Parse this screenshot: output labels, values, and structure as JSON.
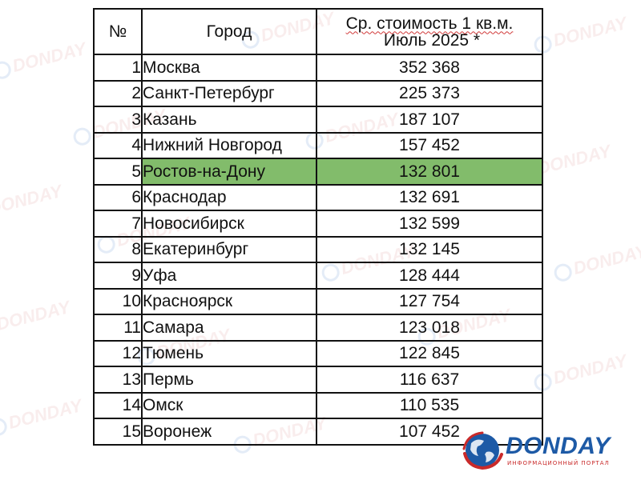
{
  "table": {
    "headers": {
      "number": "№",
      "city": "Город",
      "price_line1": "Ср. стоимость 1 кв.м.",
      "price_line2": "Июль 2025 *"
    },
    "highlight_color": "#82bc6b",
    "rows": [
      {
        "num": "1",
        "city": "Москва",
        "price": "352 368",
        "highlighted": false
      },
      {
        "num": "2",
        "city": "Санкт-Петербург",
        "price": "225 373",
        "highlighted": false
      },
      {
        "num": "3",
        "city": "Казань",
        "price": "187 107",
        "highlighted": false
      },
      {
        "num": "4",
        "city": "Нижний Новгород",
        "price": "157 452",
        "highlighted": false
      },
      {
        "num": "5",
        "city": "Ростов-на-Дону",
        "price": "132 801",
        "highlighted": true
      },
      {
        "num": "6",
        "city": "Краснодар",
        "price": "132 691",
        "highlighted": false
      },
      {
        "num": "7",
        "city": "Новосибирск",
        "price": "132 599",
        "highlighted": false
      },
      {
        "num": "8",
        "city": "Екатеринбург",
        "price": "132 145",
        "highlighted": false
      },
      {
        "num": "9",
        "city": "Уфа",
        "price": "128 444",
        "highlighted": false
      },
      {
        "num": "10",
        "city": "Красноярск",
        "price": "127 754",
        "highlighted": false
      },
      {
        "num": "11",
        "city": "Самара",
        "price": "123 018",
        "highlighted": false
      },
      {
        "num": "12",
        "city": "Тюмень",
        "price": "122 845",
        "highlighted": false
      },
      {
        "num": "13",
        "city": "Пермь",
        "price": "116 637",
        "highlighted": false
      },
      {
        "num": "14",
        "city": "Омск",
        "price": "110 535",
        "highlighted": false
      },
      {
        "num": "15",
        "city": "Воронеж",
        "price": "107 452",
        "highlighted": false
      }
    ]
  },
  "logo": {
    "wordmark": "DONDAY",
    "tagline": "ИНФОРМАЦИОННЫЙ ПОРТАЛ",
    "icon": "globe-icon",
    "colors": {
      "blue": "#1d5aa6",
      "red": "#c92a2a"
    }
  },
  "watermark": {
    "text": "DONDAY"
  }
}
